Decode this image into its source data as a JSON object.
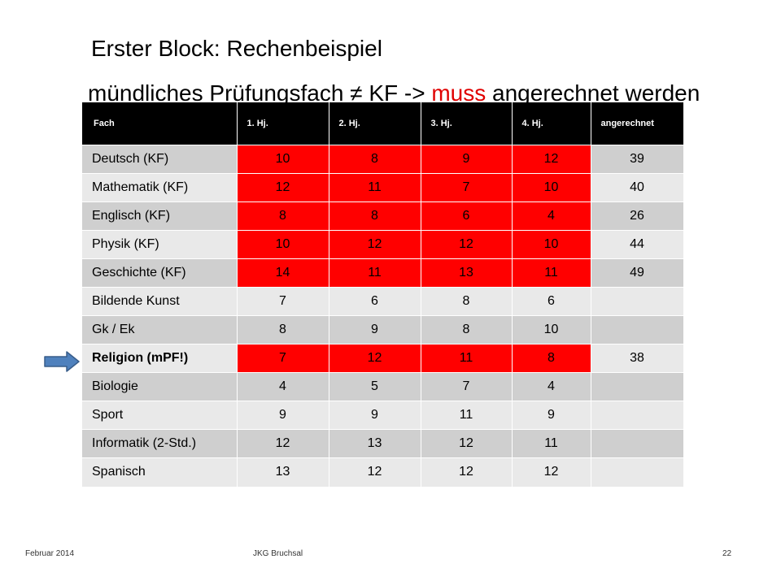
{
  "slide": {
    "title": "Erster Block: Rechenbeispiel",
    "subtitle_pre": "mündliches Prüfungsfach ≠ KF -> ",
    "subtitle_accent": "muss",
    "subtitle_post": " angerechnet werden",
    "accent_color": "#e00000"
  },
  "table": {
    "headers": [
      "Fach",
      "1. Hj.",
      "2. Hj.",
      "3. Hj.",
      "4. Hj.",
      "angerechnet"
    ],
    "rows": [
      {
        "subject": "Deutsch (KF)",
        "grades": [
          "10",
          "8",
          "9",
          "12"
        ],
        "credited": "39",
        "highlighted": true,
        "bold": false
      },
      {
        "subject": "Mathematik  (KF)",
        "grades": [
          "12",
          "11",
          "7",
          "10"
        ],
        "credited": "40",
        "highlighted": true,
        "bold": false
      },
      {
        "subject": "Englisch (KF)",
        "grades": [
          "8",
          "8",
          "6",
          "4"
        ],
        "credited": "26",
        "highlighted": true,
        "bold": false
      },
      {
        "subject": "Physik (KF)",
        "grades": [
          "10",
          "12",
          "12",
          "10"
        ],
        "credited": "44",
        "highlighted": true,
        "bold": false
      },
      {
        "subject": "Geschichte  (KF)",
        "grades": [
          "14",
          "11",
          "13",
          "11"
        ],
        "credited": "49",
        "highlighted": true,
        "bold": false
      },
      {
        "subject": "Bildende Kunst",
        "grades": [
          "7",
          "6",
          "8",
          "6"
        ],
        "credited": "",
        "highlighted": false,
        "bold": false
      },
      {
        "subject": "Gk / Ek",
        "grades": [
          "8",
          "9",
          "8",
          "10"
        ],
        "credited": "",
        "highlighted": false,
        "bold": false
      },
      {
        "subject": "Religion (mPF!)",
        "grades": [
          "7",
          "12",
          "11",
          "8"
        ],
        "credited": "38",
        "highlighted": true,
        "bold": true
      },
      {
        "subject": "Biologie",
        "grades": [
          "4",
          "5",
          "7",
          "4"
        ],
        "credited": "",
        "highlighted": false,
        "bold": false
      },
      {
        "subject": "Sport",
        "grades": [
          "9",
          "9",
          "11",
          "9"
        ],
        "credited": "",
        "highlighted": false,
        "bold": false
      },
      {
        "subject": "Informatik (2-Std.)",
        "grades": [
          "12",
          "13",
          "12",
          "11"
        ],
        "credited": "",
        "highlighted": false,
        "bold": false
      },
      {
        "subject": "Spanisch",
        "grades": [
          "13",
          "12",
          "12",
          "12"
        ],
        "credited": "",
        "highlighted": false,
        "bold": false
      }
    ],
    "highlight_color": "#ff0000",
    "row_colors": [
      "#cfcfcf",
      "#e9e9e9"
    ],
    "header_color": "#000000"
  },
  "arrow": {
    "icon": "right-arrow-icon",
    "color": "#4f81bd",
    "points_to": "Religion (mPF!)"
  },
  "footer": {
    "date": "Februar 2014",
    "school": "JKG Bruchsal",
    "page": "22"
  }
}
